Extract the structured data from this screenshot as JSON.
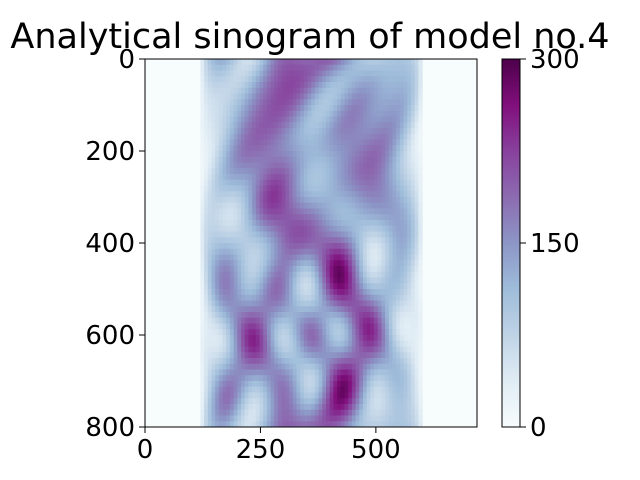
{
  "chart_data": {
    "type": "heatmap",
    "title": "Analytical sinogram of model no.4",
    "xlabel": "",
    "ylabel": "",
    "xlim": [
      0,
      719
    ],
    "ylim": [
      800,
      0
    ],
    "x_ticks": [
      "0",
      "250",
      "500"
    ],
    "x_tick_values": [
      0,
      250,
      500
    ],
    "y_ticks": [
      "0",
      "200",
      "400",
      "600",
      "800"
    ],
    "y_tick_values": [
      0,
      200,
      400,
      600,
      800
    ],
    "colormap": "BuPu",
    "colormap_stops": [
      "#f7fcfd",
      "#e0ecf4",
      "#bfd3e6",
      "#9ebcda",
      "#8c96c6",
      "#8c6bb1",
      "#88419d",
      "#810f7c",
      "#4d004b"
    ],
    "colorbar": {
      "range": [
        0,
        300
      ],
      "ticks": [
        "0",
        "150",
        "300"
      ],
      "tick_values": [
        0,
        150,
        300
      ]
    },
    "support_x_range": [
      120,
      600
    ],
    "grid": false
  }
}
